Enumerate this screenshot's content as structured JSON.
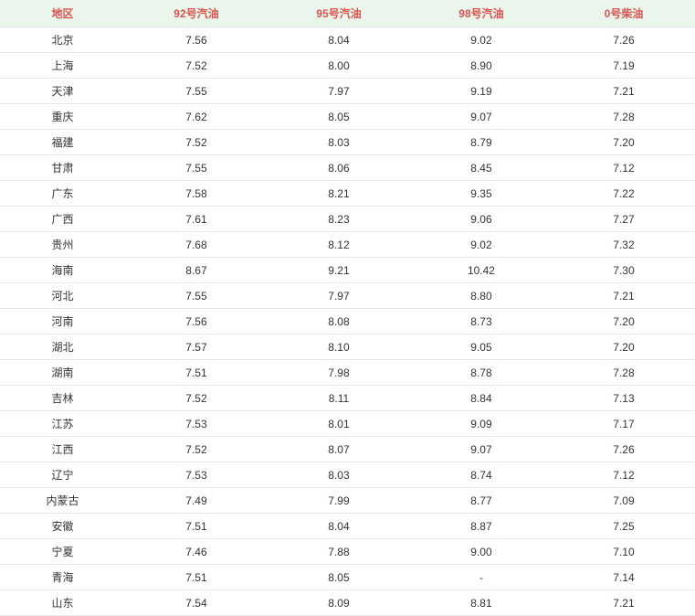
{
  "columns": [
    "地区",
    "92号汽油",
    "95号汽油",
    "98号汽油",
    "0号柴油"
  ],
  "rows": [
    [
      "北京",
      "7.56",
      "8.04",
      "9.02",
      "7.26"
    ],
    [
      "上海",
      "7.52",
      "8.00",
      "8.90",
      "7.19"
    ],
    [
      "天津",
      "7.55",
      "7.97",
      "9.19",
      "7.21"
    ],
    [
      "重庆",
      "7.62",
      "8.05",
      "9.07",
      "7.28"
    ],
    [
      "福建",
      "7.52",
      "8.03",
      "8.79",
      "7.20"
    ],
    [
      "甘肃",
      "7.55",
      "8.06",
      "8.45",
      "7.12"
    ],
    [
      "广东",
      "7.58",
      "8.21",
      "9.35",
      "7.22"
    ],
    [
      "广西",
      "7.61",
      "8.23",
      "9.06",
      "7.27"
    ],
    [
      "贵州",
      "7.68",
      "8.12",
      "9.02",
      "7.32"
    ],
    [
      "海南",
      "8.67",
      "9.21",
      "10.42",
      "7.30"
    ],
    [
      "河北",
      "7.55",
      "7.97",
      "8.80",
      "7.21"
    ],
    [
      "河南",
      "7.56",
      "8.08",
      "8.73",
      "7.20"
    ],
    [
      "湖北",
      "7.57",
      "8.10",
      "9.05",
      "7.20"
    ],
    [
      "湖南",
      "7.51",
      "7.98",
      "8.78",
      "7.28"
    ],
    [
      "吉林",
      "7.52",
      "8.11",
      "8.84",
      "7.13"
    ],
    [
      "江苏",
      "7.53",
      "8.01",
      "9.09",
      "7.17"
    ],
    [
      "江西",
      "7.52",
      "8.07",
      "9.07",
      "7.26"
    ],
    [
      "辽宁",
      "7.53",
      "8.03",
      "8.74",
      "7.12"
    ],
    [
      "内蒙古",
      "7.49",
      "7.99",
      "8.77",
      "7.09"
    ],
    [
      "安徽",
      "7.51",
      "8.04",
      "8.87",
      "7.25"
    ],
    [
      "宁夏",
      "7.46",
      "7.88",
      "9.00",
      "7.10"
    ],
    [
      "青海",
      "7.51",
      "8.05",
      "-",
      "7.14"
    ],
    [
      "山东",
      "7.54",
      "8.09",
      "8.81",
      "7.21"
    ]
  ],
  "header_bg": "#eaf6eb",
  "header_color": "#d9534f",
  "border_color": "#e6e6e6",
  "cell_color": "#333333"
}
